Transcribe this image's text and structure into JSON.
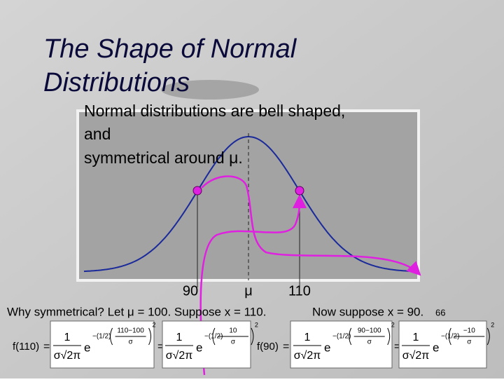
{
  "slide": {
    "title_lines": [
      "The Shape of Normal",
      "Distributions"
    ],
    "body_lines": [
      "Normal distributions are bell shaped,",
      "and",
      "symmetrical around μ."
    ],
    "axis_labels": [
      "90",
      "μ",
      "110"
    ],
    "caption_left": "Why symmetrical? Let μ = 100. Suppose x = 110.",
    "caption_right": "Now suppose x = 90.",
    "page_number": "66",
    "equals": "=",
    "formulas": [
      {
        "label": "f(110)",
        "steps": [
          {
            "numerator": "1",
            "denominator": "σ√2π",
            "base": "e",
            "coefficient": "−(1/2)",
            "inner_numerator": "110−100",
            "inner_denominator": "σ",
            "power": "2"
          },
          {
            "numerator": "1",
            "denominator": "σ√2π",
            "base": "e",
            "coefficient": "−(1/2)",
            "inner_numerator": "10",
            "inner_denominator": "σ",
            "power": "2"
          }
        ]
      },
      {
        "label": "f(90)",
        "steps": [
          {
            "numerator": "1",
            "denominator": "σ√2π",
            "base": "e",
            "coefficient": "−(1/2)",
            "inner_numerator": "90−100",
            "inner_denominator": "σ",
            "power": "2"
          },
          {
            "numerator": "1",
            "denominator": "σ√2π",
            "base": "e",
            "coefficient": "−(1/2)",
            "inner_numerator": "−10",
            "inner_denominator": "σ",
            "power": "2"
          }
        ]
      }
    ]
  }
}
